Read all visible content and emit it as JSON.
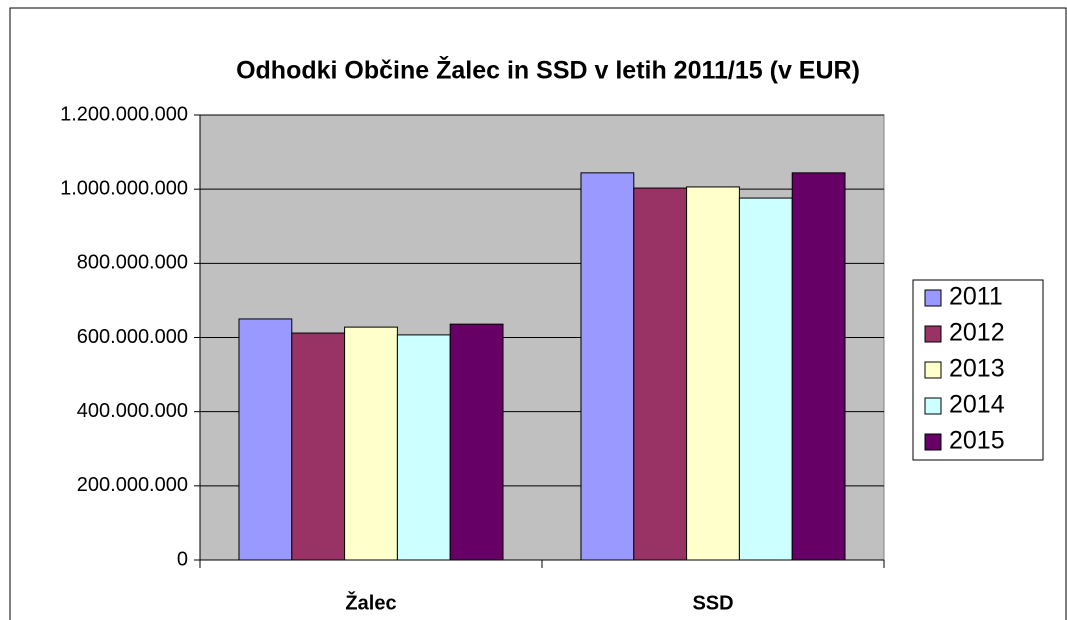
{
  "chart_data": {
    "type": "bar",
    "title": "Odhodki Občine Žalec in SSD v letih 2011/15 (v EUR)",
    "categories": [
      "Žalec",
      "SSD"
    ],
    "series": [
      {
        "name": "2011",
        "color": "#9999ff",
        "values": [
          650000000,
          1044000000
        ]
      },
      {
        "name": "2012",
        "color": "#993366",
        "values": [
          612000000,
          1003000000
        ]
      },
      {
        "name": "2013",
        "color": "#ffffcc",
        "values": [
          628000000,
          1006000000
        ]
      },
      {
        "name": "2014",
        "color": "#ccffff",
        "values": [
          607000000,
          976000000
        ]
      },
      {
        "name": "2015",
        "color": "#660066",
        "values": [
          636000000,
          1044000000
        ]
      }
    ],
    "ylim": [
      0,
      1200000000
    ],
    "yticks": [
      0,
      {
        "value": 200000000,
        "label": "200.000.000"
      },
      {
        "value": 400000000,
        "label": "400.000.000"
      },
      {
        "value": 600000000,
        "label": "600.000.000"
      },
      {
        "value": 800000000,
        "label": "800.000.000"
      },
      {
        "value": 1000000000,
        "label": "1.000.000.000"
      },
      {
        "value": 1200000000,
        "label": "1.200.000.000"
      }
    ],
    "grid": true,
    "legend": "right"
  }
}
